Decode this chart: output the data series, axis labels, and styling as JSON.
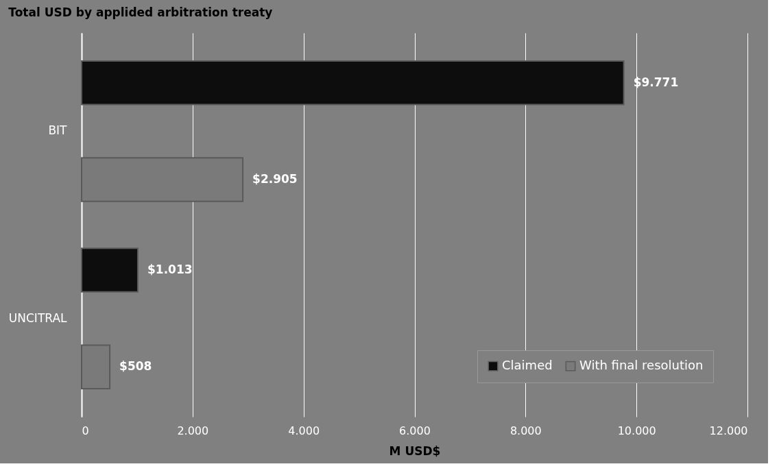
{
  "chart_data": {
    "type": "bar",
    "orientation": "horizontal",
    "title": "Total USD by applided arbitration treaty",
    "xlabel": "M USD$",
    "categories": [
      "BIT",
      "UNCITRAL"
    ],
    "series": [
      {
        "name": "Claimed",
        "color": "#0d0d0d",
        "values": [
          9771,
          1013
        ],
        "value_labels": [
          "$9.771",
          "$1.013"
        ]
      },
      {
        "name": "With final resolution",
        "color": "#7a7a7a",
        "values": [
          2905,
          508
        ],
        "value_labels": [
          "$2.905",
          "$508"
        ]
      }
    ],
    "xlim": [
      0,
      12000
    ],
    "xticks": [
      0,
      {
        "value": 2000,
        "label": "2.000"
      },
      {
        "value": 4000,
        "label": "4.000"
      },
      {
        "value": 6000,
        "label": "6.000"
      },
      {
        "value": 8000,
        "label": "8.000"
      },
      {
        "value": 10000,
        "label": "10.000"
      },
      {
        "value": 12000,
        "label": "12.000"
      }
    ],
    "grid": "x",
    "legend": "bottom right"
  }
}
